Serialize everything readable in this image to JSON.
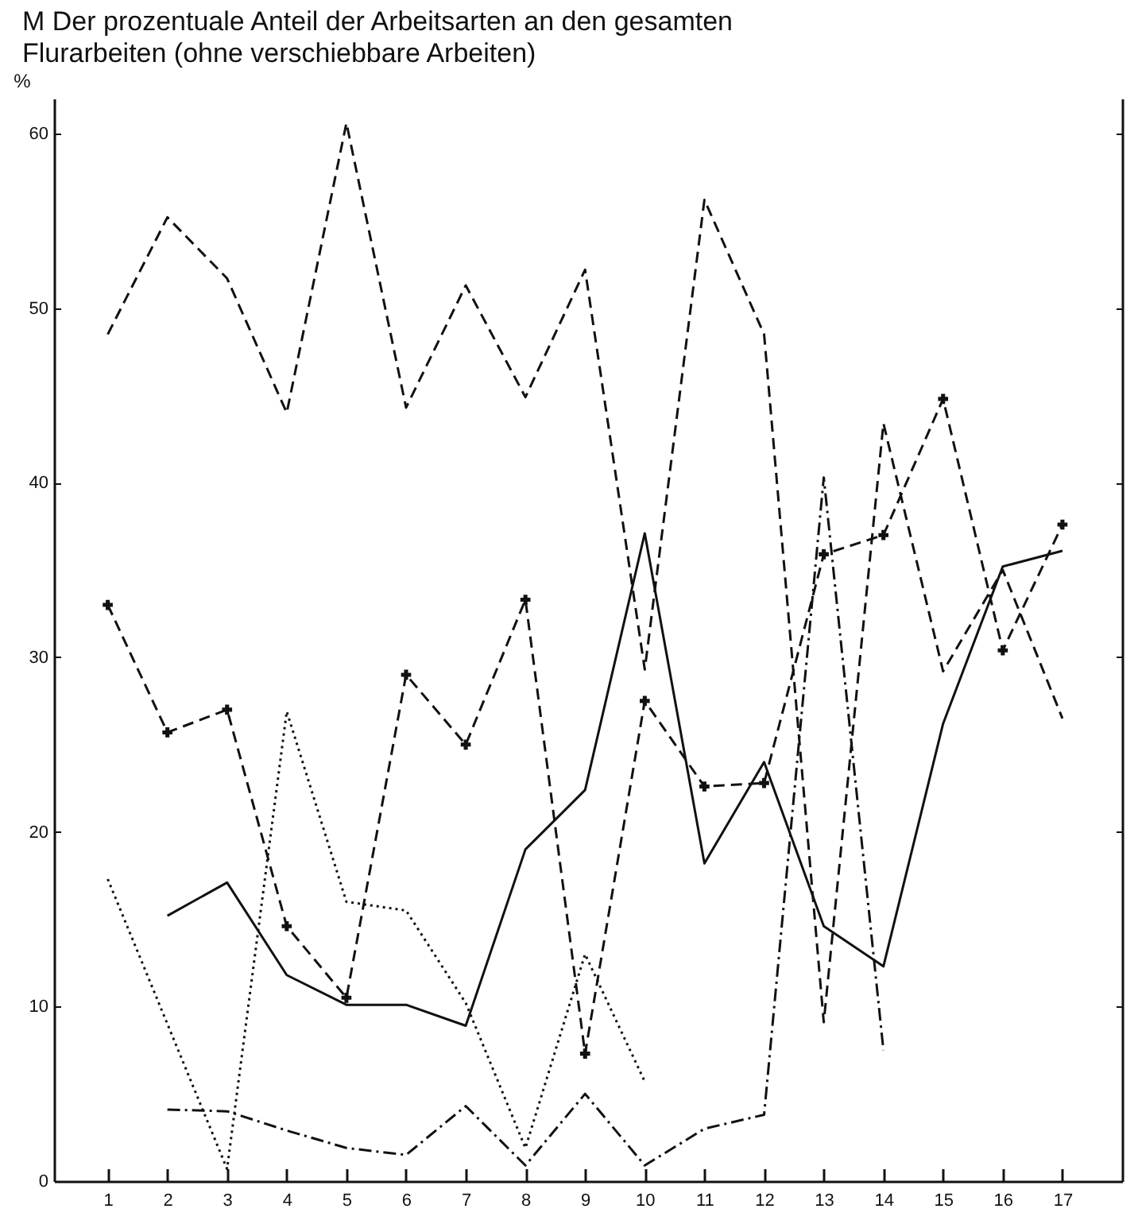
{
  "chart_data": {
    "type": "line",
    "title": "M   Der prozentuale Anteil der Arbeitsarten an den gesamten\n      Flurarbeiten (ohne verschiebbare Arbeiten)",
    "ylabel": "%",
    "xlim": [
      0.1,
      18
    ],
    "xticks": [
      1,
      2,
      3,
      4,
      5,
      6,
      7,
      8,
      9,
      10,
      11,
      12,
      13,
      14,
      15,
      16,
      17
    ],
    "ylim": [
      0,
      62
    ],
    "yticks": [
      0,
      10,
      20,
      30,
      40,
      50,
      60
    ],
    "grid": false,
    "legend": false,
    "series": [
      {
        "color": "#111111",
        "line_style": "dashed",
        "x": [
          1,
          2,
          3,
          4,
          5,
          6,
          7,
          8,
          9,
          10,
          11,
          12,
          13,
          14,
          15,
          16,
          17
        ],
        "values": [
          48.5,
          55.2,
          51.7,
          44.0,
          60.6,
          44.3,
          51.3,
          44.9,
          52.2,
          29.3,
          56.2,
          48.5,
          9.1,
          43.4,
          29.2,
          35.0,
          26.5
        ]
      },
      {
        "color": "#111111",
        "line_style": "dashed",
        "marker": "cross",
        "x": [
          1,
          2,
          3,
          4,
          5,
          6,
          7,
          8,
          9,
          10,
          11,
          12,
          13,
          14,
          15,
          16,
          17
        ],
        "values": [
          33.0,
          25.7,
          27.0,
          14.6,
          10.5,
          29.0,
          25.0,
          33.3,
          7.3,
          27.5,
          22.6,
          22.8,
          35.9,
          37.0,
          44.8,
          30.4,
          37.6
        ]
      },
      {
        "color": "#111111",
        "line_style": "solid",
        "x": [
          2,
          3,
          4,
          5,
          6,
          7,
          8,
          9,
          10,
          11,
          12,
          13,
          14,
          15,
          16,
          17
        ],
        "values": [
          15.2,
          17.1,
          11.8,
          10.1,
          10.1,
          8.9,
          19.0,
          22.4,
          37.1,
          18.2,
          24.0,
          14.6,
          12.3,
          26.2,
          35.2,
          36.1
        ]
      },
      {
        "color": "#111111",
        "line_style": "dotted",
        "x": [
          1,
          3,
          4,
          5,
          6,
          7,
          8,
          9,
          10
        ],
        "values": [
          17.3,
          0.7,
          26.9,
          16.0,
          15.5,
          10.2,
          1.9,
          13.0,
          5.7
        ]
      },
      {
        "color": "#111111",
        "line_style": "dashdot",
        "x": [
          2,
          3,
          4,
          5,
          6,
          7,
          8,
          9,
          10,
          11,
          12,
          13,
          14
        ],
        "values": [
          4.1,
          4.0,
          2.9,
          1.9,
          1.5,
          4.3,
          0.9,
          5.0,
          0.9,
          3.0,
          3.8,
          40.3,
          7.5
        ]
      }
    ]
  }
}
